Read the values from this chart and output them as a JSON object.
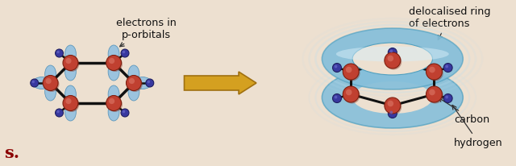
{
  "bg_color": "#ede0d0",
  "carbon_color": "#c04030",
  "carbon_highlight": "#d87060",
  "carbon_shadow": "#803020",
  "hydrogen_color": "#3838a0",
  "hydrogen_highlight": "#6868c8",
  "orbital_color": "#90c0e0",
  "orbital_edge": "#5090b8",
  "bond_color": "#111111",
  "arrow_face": "#d4a020",
  "arrow_edge": "#a07810",
  "torus_light": "#b8dff0",
  "torus_mid": "#80bcd8",
  "torus_dark": "#50a0c0",
  "label_color": "#111111",
  "text_electrons": "electrons in\np-orbitals",
  "text_delocalised": "delocalised ring\nof electrons",
  "text_carbon": "carbon",
  "text_hydrogen": "hydrogen",
  "text_s": "s.",
  "fig_width": 6.4,
  "fig_height": 2.06
}
